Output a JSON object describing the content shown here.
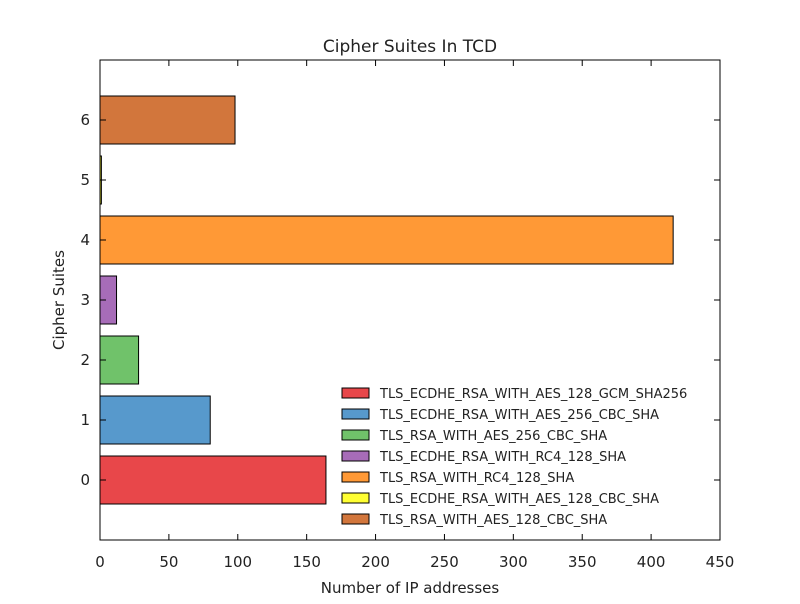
{
  "chart_data": {
    "type": "bar",
    "orientation": "horizontal",
    "title": "Cipher Suites In TCD",
    "xlabel": "Number of IP addresses",
    "ylabel": "Cipher Suites",
    "xlim": [
      0,
      450
    ],
    "ylim": [
      -1,
      7
    ],
    "xticks": [
      0,
      50,
      100,
      150,
      200,
      250,
      300,
      350,
      400,
      450
    ],
    "yticks": [
      0,
      1,
      2,
      3,
      4,
      5,
      6
    ],
    "grid": false,
    "legend_position": "lower-right",
    "categories": [
      0,
      1,
      2,
      3,
      4,
      5,
      6
    ],
    "values": [
      164,
      80,
      28,
      12,
      416,
      1,
      98
    ],
    "series_names": [
      "TLS_ECDHE_RSA_WITH_AES_128_GCM_SHA256",
      "TLS_ECDHE_RSA_WITH_AES_256_CBC_SHA",
      "TLS_RSA_WITH_AES_256_CBC_SHA",
      "TLS_ECDHE_RSA_WITH_RC4_128_SHA",
      "TLS_RSA_WITH_RC4_128_SHA",
      "TLS_ECDHE_RSA_WITH_AES_128_CBC_SHA",
      "TLS_RSA_WITH_AES_128_CBC_SHA"
    ],
    "colors": [
      "#e8474a",
      "#5799cc",
      "#70c26a",
      "#a76cb8",
      "#ff9936",
      "#ffff33",
      "#d2763c"
    ]
  }
}
